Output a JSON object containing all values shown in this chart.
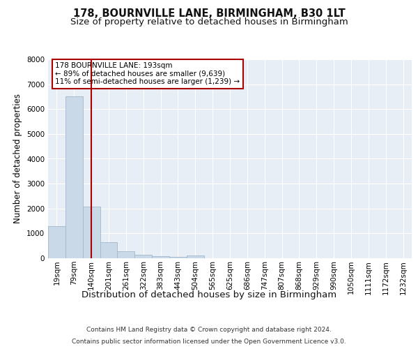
{
  "title_line1": "178, BOURNVILLE LANE, BIRMINGHAM, B30 1LT",
  "title_line2": "Size of property relative to detached houses in Birmingham",
  "xlabel": "Distribution of detached houses by size in Birmingham",
  "ylabel": "Number of detached properties",
  "footer_line1": "Contains HM Land Registry data © Crown copyright and database right 2024.",
  "footer_line2": "Contains public sector information licensed under the Open Government Licence v3.0.",
  "annotation_line1": "178 BOURNVILLE LANE: 193sqm",
  "annotation_line2": "← 89% of detached houses are smaller (9,639)",
  "annotation_line3": "11% of semi-detached houses are larger (1,239) →",
  "bar_labels": [
    "19sqm",
    "79sqm",
    "140sqm",
    "201sqm",
    "261sqm",
    "322sqm",
    "383sqm",
    "443sqm",
    "504sqm",
    "565sqm",
    "625sqm",
    "686sqm",
    "747sqm",
    "807sqm",
    "868sqm",
    "929sqm",
    "990sqm",
    "1050sqm",
    "1111sqm",
    "1172sqm",
    "1232sqm"
  ],
  "bar_values": [
    1300,
    6500,
    2080,
    650,
    270,
    145,
    90,
    55,
    100,
    0,
    0,
    0,
    0,
    0,
    0,
    0,
    0,
    0,
    0,
    0,
    0
  ],
  "bar_color": "#c9d9e8",
  "bar_edge_color": "#a0b8cc",
  "vline_color": "#aa0000",
  "vline_x": 2.5,
  "annotation_box_color": "#aa0000",
  "background_color": "#e8eef5",
  "ylim": [
    0,
    8000
  ],
  "yticks": [
    0,
    1000,
    2000,
    3000,
    4000,
    5000,
    6000,
    7000,
    8000
  ],
  "grid_color": "#ffffff",
  "title_fontsize": 10.5,
  "subtitle_fontsize": 9.5,
  "ylabel_fontsize": 8.5,
  "xlabel_fontsize": 9.5,
  "tick_fontsize": 7.5,
  "annotation_fontsize": 7.5,
  "footer_fontsize": 6.5
}
